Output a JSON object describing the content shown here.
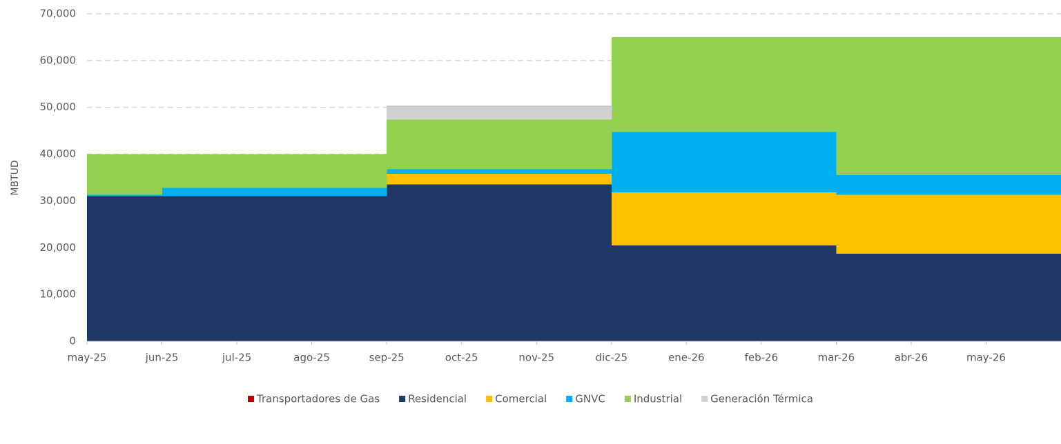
{
  "chart_data": {
    "type": "stacked_step_area",
    "y_label": "MBTUD",
    "categories": [
      "may-25",
      "jun-25",
      "jul-25",
      "ago-25",
      "sep-25",
      "oct-25",
      "nov-25",
      "dic-25",
      "ene-26",
      "feb-26",
      "mar-26",
      "abr-26",
      "may-26"
    ],
    "series": [
      {
        "name": "Transportadores de Gas",
        "color": "#c00000",
        "values": [
          0,
          0,
          0,
          0,
          0,
          0,
          0,
          0,
          0,
          0,
          0,
          0,
          0
        ]
      },
      {
        "name": "Residencial",
        "color": "#203864",
        "values": [
          31000,
          31000,
          31000,
          31000,
          33500,
          33500,
          33500,
          20500,
          20500,
          20500,
          18700,
          18700,
          18700
        ]
      },
      {
        "name": "Comercial",
        "color": "#ffc000",
        "values": [
          0,
          0,
          0,
          0,
          2300,
          2300,
          2300,
          11300,
          11300,
          11300,
          12600,
          12600,
          12600
        ]
      },
      {
        "name": "GNVC",
        "color": "#00b0f0",
        "values": [
          300,
          1800,
          1800,
          1800,
          1000,
          1000,
          1000,
          12900,
          12900,
          12900,
          4200,
          4200,
          4200
        ]
      },
      {
        "name": "Industrial",
        "color": "#92d050",
        "values": [
          8700,
          7200,
          7200,
          7200,
          10600,
          10600,
          10600,
          20300,
          20300,
          20300,
          29500,
          29500,
          29500
        ]
      },
      {
        "name": "Generación Térmica",
        "color": "#d0d0d0",
        "values": [
          0,
          0,
          0,
          0,
          3000,
          3000,
          3000,
          0,
          0,
          0,
          0,
          0,
          0
        ]
      }
    ],
    "ylim": [
      0,
      70000
    ],
    "yticks": [
      0,
      {
        "value": 10000,
        "label": "10,000"
      },
      {
        "value": 20000,
        "label": "20,000"
      },
      {
        "value": 30000,
        "label": "30,000"
      },
      {
        "value": 40000,
        "label": "40,000"
      },
      {
        "value": 50000,
        "label": "50,000"
      },
      {
        "value": 60000,
        "label": "60,000"
      },
      {
        "value": 70000,
        "label": "70,000"
      }
    ],
    "grid": true,
    "legend": "bottom"
  }
}
